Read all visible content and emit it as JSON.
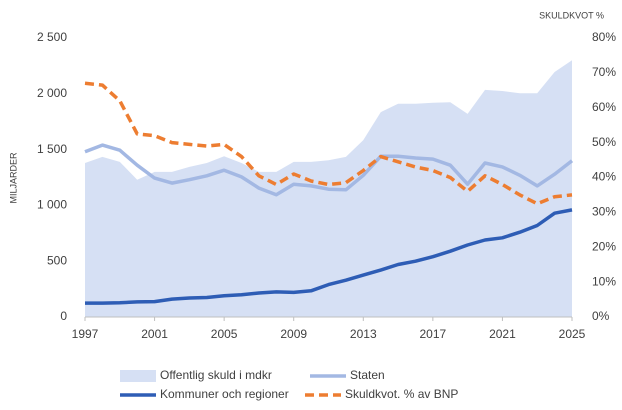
{
  "chart_data": {
    "type": "line",
    "y_label": "MILJARDER",
    "y2_label": "SKULDKVOT %",
    "x": [
      1997,
      1998,
      1999,
      2000,
      2001,
      2002,
      2003,
      2004,
      2005,
      2006,
      2007,
      2008,
      2009,
      2010,
      2011,
      2012,
      2013,
      2014,
      2015,
      2016,
      2017,
      2018,
      2019,
      2020,
      2021,
      2022,
      2023,
      2024,
      2025
    ],
    "xlim": [
      1997,
      2025
    ],
    "xticks": [
      1997,
      2001,
      2005,
      2009,
      2013,
      2017,
      2021,
      2025
    ],
    "ylim": [
      0,
      2500
    ],
    "yticks": [
      0,
      500,
      {
        "value": 1000,
        "label": "1 000"
      },
      {
        "value": 1500,
        "label": "1 500"
      },
      {
        "value": 2000,
        "label": "2 000"
      },
      {
        "value": 2500,
        "label": "2 500"
      }
    ],
    "y2lim": [
      0,
      80
    ],
    "y2ticks": [
      {
        "value": 0,
        "label": "0%"
      },
      {
        "value": 10,
        "label": "10%"
      },
      {
        "value": 20,
        "label": "20%"
      },
      {
        "value": 30,
        "label": "30%"
      },
      {
        "value": 40,
        "label": "40%"
      },
      {
        "value": 50,
        "label": "50%"
      },
      {
        "value": 60,
        "label": "60%"
      },
      {
        "value": 70,
        "label": "70%"
      },
      {
        "value": 80,
        "label": "80%"
      }
    ],
    "grid": false,
    "series": [
      {
        "name": "Offentlig skuld i mdkr",
        "style": "area",
        "color": "#d6e0f4",
        "values": [
          1380,
          1435,
          1390,
          1230,
          1300,
          1300,
          1345,
          1380,
          1440,
          1380,
          1300,
          1300,
          1390,
          1390,
          1405,
          1435,
          1585,
          1835,
          1910,
          1910,
          1920,
          1925,
          1820,
          2035,
          2025,
          2005,
          2005,
          2195,
          2300
        ]
      },
      {
        "name": "Staten",
        "style": "line",
        "color": "#a3b8e3",
        "values": [
          1480,
          1540,
          1495,
          1360,
          1245,
          1200,
          1230,
          1265,
          1315,
          1255,
          1155,
          1095,
          1190,
          1175,
          1145,
          1140,
          1270,
          1440,
          1440,
          1425,
          1415,
          1360,
          1190,
          1380,
          1345,
          1270,
          1175,
          1280,
          1400
        ]
      },
      {
        "name": "Kommuner och regioner",
        "style": "line",
        "color": "#2e5db5",
        "values": [
          125,
          125,
          128,
          135,
          138,
          160,
          170,
          175,
          190,
          200,
          215,
          225,
          220,
          235,
          290,
          330,
          375,
          420,
          470,
          500,
          540,
          590,
          645,
          690,
          710,
          760,
          820,
          930,
          960
        ]
      },
      {
        "name": "Skuldkvot. % av BNP",
        "style": "dashed",
        "color": "#ed7d31",
        "axis": "y2",
        "values": [
          67,
          66.5,
          62,
          52.5,
          52,
          50,
          49.5,
          49,
          49.5,
          46,
          40.5,
          38,
          41,
          39,
          38,
          38.5,
          42,
          46,
          44.5,
          43,
          42,
          40,
          36,
          40.5,
          38,
          35,
          32.5,
          34.5,
          35
        ]
      }
    ]
  }
}
